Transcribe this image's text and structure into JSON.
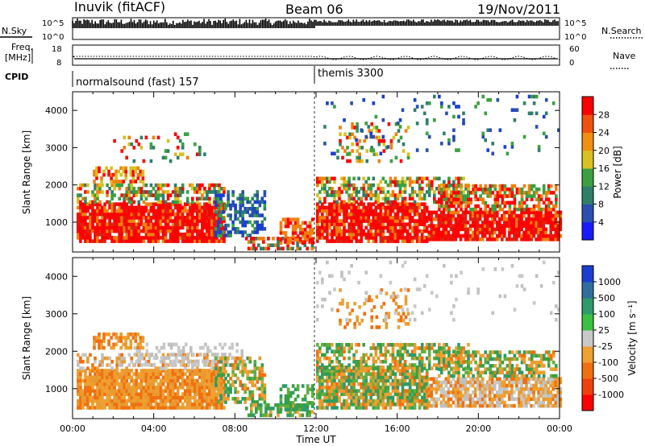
{
  "header": {
    "site": "Inuvik (fitACF)",
    "beam": "Beam 06",
    "date": "19/Nov/2011"
  },
  "left_labels": {
    "nsky": "N.Sky",
    "freq": "Freq.",
    "freq_unit": "[MHz]",
    "cpid": "CPID"
  },
  "right_labels": {
    "nsearch": "N.Search",
    "nave": "Nave"
  },
  "status_panel": {
    "nsky_ticks": [
      "10^5",
      "10^0"
    ],
    "nsearch_ticks": [
      "10^5",
      "10^0"
    ],
    "freq_ticks": [
      "18",
      "8"
    ],
    "nave_ticks": [
      "60",
      "0"
    ],
    "modes": [
      {
        "name": "normalsound (fast) 157",
        "start": "00:00",
        "end": "12:00"
      },
      {
        "name": "themis 3300",
        "start": "12:00",
        "end": "24:00"
      }
    ]
  },
  "chart_data": [
    {
      "type": "heatmap",
      "name": "power",
      "xlabel": "",
      "ylabel": "Slant Range [km]",
      "x_range_hours": [
        0,
        24
      ],
      "ylim": [
        200,
        4500
      ],
      "yticks": [
        "1000",
        "2000",
        "3000",
        "4000"
      ],
      "colorbar": {
        "label": "Power [dB]",
        "ticks": [
          "4",
          "8",
          "12",
          "16",
          "20",
          "24",
          "28"
        ],
        "colors": [
          "#1a1aff",
          "#2a4fb0",
          "#2f7f6a",
          "#3aa040",
          "#d8c020",
          "#f09010",
          "#f05010",
          "#ff0000"
        ]
      },
      "dominant_value_approx": "high power (20–30 dB) in 500–1500 km band, 00–08 UT and 12–24 UT"
    },
    {
      "type": "heatmap",
      "name": "velocity",
      "xlabel": "Time UT",
      "ylabel": "Slant Range [km]",
      "x_range_hours": [
        0,
        24
      ],
      "ylim": [
        200,
        4500
      ],
      "yticks": [
        "1000",
        "2000",
        "3000",
        "4000"
      ],
      "xticks": [
        "00:00",
        "04:00",
        "08:00",
        "12:00",
        "16:00",
        "20:00",
        "00:00"
      ],
      "colorbar": {
        "label": "Velocity [m s⁻¹]",
        "ticks": [
          "1000",
          "500",
          "100",
          "25",
          "-25",
          "-100",
          "-500",
          "-1000"
        ],
        "colors": [
          "#1a3fd0",
          "#2f6fa0",
          "#2f9a6a",
          "#3cc040",
          "#c8c8c8",
          "#f0a030",
          "#f07010",
          "#f04010",
          "#ff0000"
        ]
      }
    }
  ],
  "colors": {
    "red": "#ff0000",
    "orange": "#f08010",
    "yellow": "#d8c020",
    "green": "#3aa040",
    "teal": "#2f7f6a",
    "blue": "#1a3fd0",
    "gray": "#c8c8c8"
  }
}
